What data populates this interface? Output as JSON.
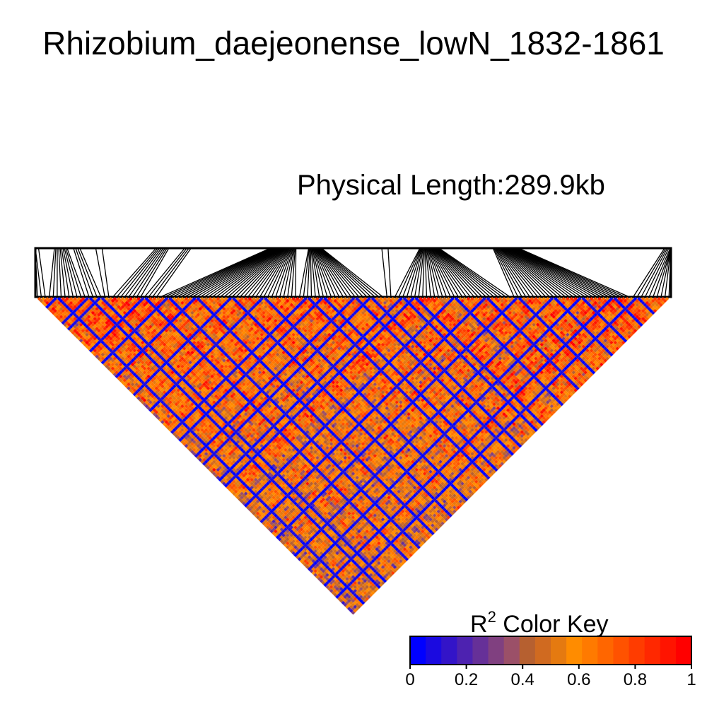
{
  "title": "Rhizobium_daejeonense_lowN_1832-1861",
  "subtitle": "Physical Length:289.9kb",
  "color_key": {
    "label_main": "R",
    "label_sup": "2",
    "label_rest": " Color Key",
    "ticks": [
      "0",
      "0.2",
      "0.4",
      "0.6",
      "0.8",
      "1"
    ],
    "tick_values": [
      0,
      0.2,
      0.4,
      0.6,
      0.8,
      1
    ],
    "colors": [
      "#0000ff",
      "#1b0ae0",
      "#3314c8",
      "#4d22b0",
      "#663098",
      "#804080",
      "#9b5068",
      "#b66030",
      "#d06a20",
      "#e57a10",
      "#ff8c00",
      "#ff7a00",
      "#ff6600",
      "#ff5200",
      "#ff3c00",
      "#ff2800",
      "#ff1400",
      "#ff0000"
    ]
  },
  "chart_data": {
    "type": "heatmap",
    "title": "Rhizobium_daejeonense_lowN_1832-1861",
    "subtitle": "Physical Length:289.9kb",
    "physical_length_kb": 289.9,
    "n_snps": 160,
    "value_range": [
      0,
      1
    ],
    "legend_title": "R2 Color Key",
    "snp_position_clusters": [
      {
        "start_fraction": 0.0,
        "count": 3,
        "spread_fraction": 0.01
      },
      {
        "start_fraction": 0.04,
        "count": 10,
        "spread_fraction": 0.02
      },
      {
        "start_fraction": 0.065,
        "count": 4,
        "spread_fraction": 0.01
      },
      {
        "start_fraction": 0.1,
        "count": 2,
        "spread_fraction": 0.01
      },
      {
        "start_fraction": 0.2,
        "count": 8,
        "spread_fraction": 0.02
      },
      {
        "start_fraction": 0.24,
        "count": 4,
        "spread_fraction": 0.01
      },
      {
        "start_fraction": 0.39,
        "count": 35,
        "spread_fraction": 0.04
      },
      {
        "start_fraction": 0.44,
        "count": 22,
        "spread_fraction": 0.02
      },
      {
        "start_fraction": 0.55,
        "count": 2,
        "spread_fraction": 0.01
      },
      {
        "start_fraction": 0.62,
        "count": 30,
        "spread_fraction": 0.03
      },
      {
        "start_fraction": 0.74,
        "count": 30,
        "spread_fraction": 0.04
      },
      {
        "start_fraction": 1.0,
        "count": 10,
        "spread_fraction": 0.02
      }
    ],
    "low_ld_snp_fractions": [
      0.03,
      0.08,
      0.1,
      0.17,
      0.21,
      0.25,
      0.31,
      0.36,
      0.43,
      0.45,
      0.5,
      0.53,
      0.58,
      0.6,
      0.66,
      0.71,
      0.76,
      0.82,
      0.86,
      0.91,
      0.95
    ]
  }
}
